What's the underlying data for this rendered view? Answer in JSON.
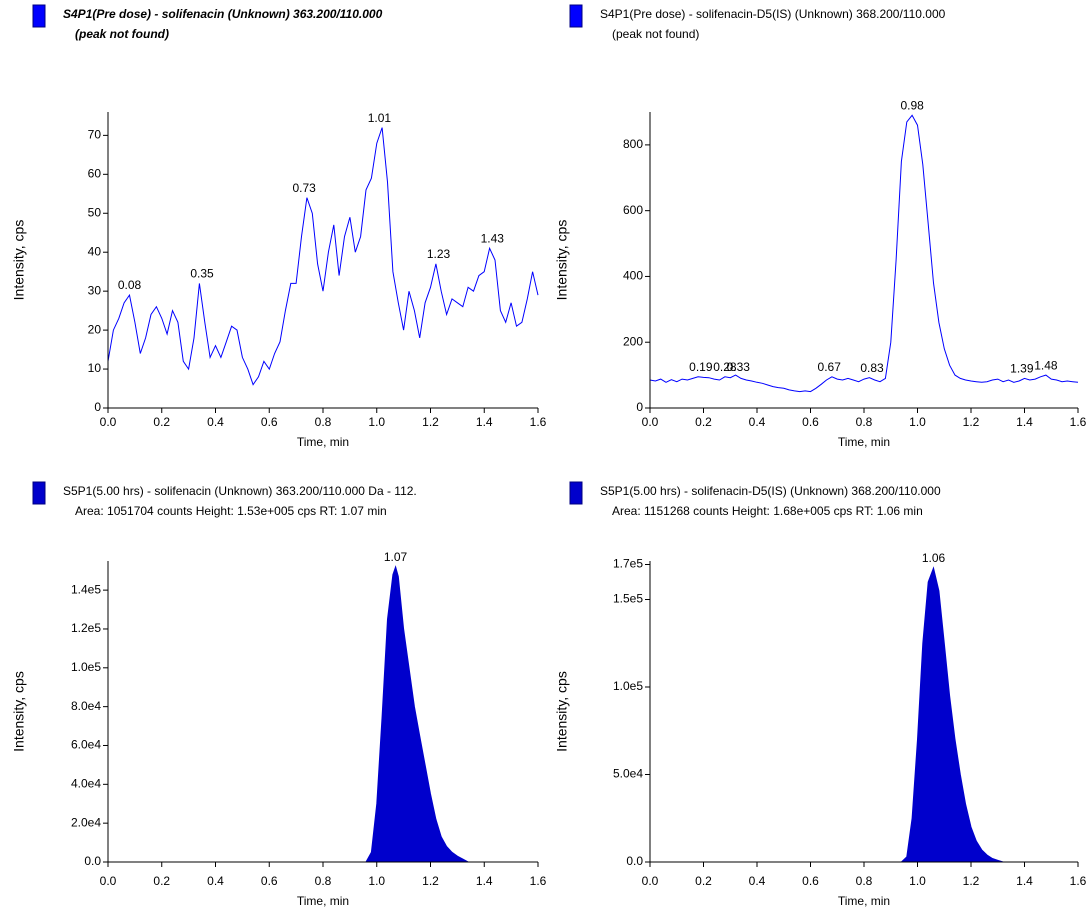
{
  "chart_data": [
    {
      "type": "line",
      "title": "S4P1(Pre dose) - solifenacin (Unknown) 363.200/110.000",
      "subtitle": "(peak not found)",
      "x_label": "Time, min",
      "y_label": "Intensity, cps",
      "color": "#0000ff",
      "x": [
        0,
        0.02,
        0.04,
        0.06,
        0.08,
        0.1,
        0.12,
        0.14,
        0.16,
        0.18,
        0.2,
        0.22,
        0.24,
        0.26,
        0.28,
        0.3,
        0.32,
        0.34,
        0.36,
        0.38,
        0.4,
        0.42,
        0.44,
        0.46,
        0.48,
        0.5,
        0.52,
        0.54,
        0.56,
        0.58,
        0.6,
        0.62,
        0.64,
        0.66,
        0.68,
        0.7,
        0.72,
        0.74,
        0.76,
        0.78,
        0.8,
        0.82,
        0.84,
        0.86,
        0.88,
        0.9,
        0.92,
        0.94,
        0.96,
        0.98,
        1,
        1.02,
        1.04,
        1.06,
        1.08,
        1.1,
        1.12,
        1.14,
        1.16,
        1.18,
        1.2,
        1.22,
        1.24,
        1.26,
        1.28,
        1.3,
        1.32,
        1.34,
        1.36,
        1.38,
        1.4,
        1.42,
        1.44,
        1.46,
        1.48,
        1.5,
        1.52,
        1.54,
        1.56,
        1.58,
        1.6
      ],
      "values": [
        12,
        20,
        23,
        27,
        29,
        22,
        14,
        18,
        24,
        26,
        23,
        19,
        25,
        22,
        12,
        10,
        18,
        32,
        22,
        13,
        16,
        13,
        17,
        21,
        20,
        13,
        10,
        6,
        8,
        12,
        10,
        14,
        17,
        25,
        32,
        32,
        44,
        54,
        50,
        37,
        30,
        40,
        47,
        34,
        44,
        49,
        40,
        44,
        56,
        59,
        68,
        72,
        58,
        35,
        27,
        20,
        30,
        25,
        18,
        27,
        31,
        37,
        30,
        24,
        28,
        27,
        26,
        31,
        30,
        34,
        35,
        41,
        38,
        25,
        22,
        27,
        21,
        22,
        28,
        35,
        29
      ],
      "annotations": [
        {
          "x": 0.08,
          "y": 29
        },
        {
          "x": 0.35,
          "y": 32
        },
        {
          "x": 0.73,
          "y": 54
        },
        {
          "x": 1.01,
          "y": 72
        },
        {
          "x": 1.23,
          "y": 37
        },
        {
          "x": 1.43,
          "y": 41
        }
      ],
      "xlim": [
        0,
        1.6
      ],
      "xticks": [
        {
          "value": 0,
          "label": "0.0"
        },
        0.2,
        0.4,
        0.6,
        0.8,
        {
          "value": 1,
          "label": "1.0"
        },
        1.2,
        1.4,
        1.6
      ],
      "ylim": [
        0,
        76
      ],
      "yticks": [
        0,
        10,
        20,
        30,
        40,
        50,
        60,
        70
      ]
    },
    {
      "type": "line",
      "title": "S4P1(Pre dose) - solifenacin-D5(IS) (Unknown) 368.200/110.000",
      "subtitle": "(peak not found)",
      "x_label": "Time, min",
      "y_label": "Intensity, cps",
      "color": "#0000ff",
      "x": [
        0,
        0.02,
        0.04,
        0.06,
        0.08,
        0.1,
        0.12,
        0.14,
        0.16,
        0.18,
        0.2,
        0.22,
        0.24,
        0.26,
        0.28,
        0.3,
        0.32,
        0.34,
        0.36,
        0.38,
        0.4,
        0.42,
        0.44,
        0.46,
        0.48,
        0.5,
        0.52,
        0.54,
        0.56,
        0.58,
        0.6,
        0.62,
        0.64,
        0.66,
        0.68,
        0.7,
        0.72,
        0.74,
        0.76,
        0.78,
        0.8,
        0.82,
        0.84,
        0.86,
        0.88,
        0.9,
        0.92,
        0.94,
        0.96,
        0.98,
        1,
        1.02,
        1.04,
        1.06,
        1.08,
        1.1,
        1.12,
        1.14,
        1.16,
        1.18,
        1.2,
        1.22,
        1.24,
        1.26,
        1.28,
        1.3,
        1.32,
        1.34,
        1.36,
        1.38,
        1.4,
        1.42,
        1.44,
        1.46,
        1.48,
        1.5,
        1.52,
        1.54,
        1.56,
        1.58,
        1.6
      ],
      "values": [
        85,
        82,
        88,
        78,
        86,
        80,
        88,
        85,
        90,
        95,
        93,
        92,
        88,
        85,
        95,
        92,
        100,
        90,
        85,
        82,
        78,
        75,
        70,
        65,
        62,
        60,
        55,
        52,
        50,
        52,
        50,
        60,
        72,
        85,
        95,
        88,
        85,
        90,
        85,
        80,
        88,
        92,
        85,
        80,
        90,
        200,
        450,
        750,
        870,
        890,
        860,
        740,
        560,
        380,
        260,
        180,
        130,
        100,
        90,
        85,
        82,
        80,
        78,
        80,
        85,
        88,
        80,
        85,
        78,
        82,
        90,
        85,
        88,
        95,
        100,
        88,
        85,
        80,
        82,
        80,
        78
      ],
      "annotations": [
        {
          "x": 0.19,
          "y": 95
        },
        {
          "x": 0.28,
          "y": 95
        },
        {
          "x": 0.33,
          "y": 95
        },
        {
          "x": 0.67,
          "y": 95
        },
        {
          "x": 0.83,
          "y": 92
        },
        {
          "x": 0.98,
          "y": 890
        },
        {
          "x": 1.39,
          "y": 90
        },
        {
          "x": 1.48,
          "y": 100
        }
      ],
      "xlim": [
        0,
        1.6
      ],
      "xticks": [
        {
          "value": 0,
          "label": "0.0"
        },
        0.2,
        0.4,
        0.6,
        0.8,
        {
          "value": 1,
          "label": "1.0"
        },
        1.2,
        1.4,
        1.6
      ],
      "ylim": [
        0,
        900
      ],
      "yticks": [
        0,
        200,
        400,
        600,
        800
      ]
    },
    {
      "type": "area",
      "title": "S5P1(5.00 hrs) - solifenacin (Unknown) 363.200/110.000 Da - 112.",
      "subtitle": "Area: 1051704 counts  Height: 1.53e+005 cps  RT: 1.07 min",
      "x_label": "Time, min",
      "y_label": "Intensity, cps",
      "color": "#0000cc",
      "x": [
        0,
        0.96,
        0.98,
        1,
        1.02,
        1.04,
        1.06,
        1.07,
        1.08,
        1.1,
        1.12,
        1.14,
        1.16,
        1.18,
        1.2,
        1.22,
        1.24,
        1.26,
        1.28,
        1.3,
        1.32,
        1.34,
        1.6
      ],
      "values": [
        0,
        0,
        5000,
        30000,
        75000,
        125000,
        148000,
        152000,
        147000,
        120000,
        100000,
        80000,
        65000,
        50000,
        35000,
        22000,
        13000,
        8000,
        5000,
        3000,
        1500,
        0,
        0
      ],
      "annotations": [
        {
          "x": 1.07,
          "y": 152000
        }
      ],
      "xlim": [
        0,
        1.6
      ],
      "xticks": [
        {
          "value": 0,
          "label": "0.0"
        },
        0.2,
        0.4,
        0.6,
        0.8,
        {
          "value": 1,
          "label": "1.0"
        },
        1.2,
        1.4,
        1.6
      ],
      "ylim": [
        0,
        155000
      ],
      "yticks": [
        {
          "value": 0,
          "label": "0.0"
        },
        {
          "value": 20000,
          "label": "2.0e4"
        },
        {
          "value": 40000,
          "label": "4.0e4"
        },
        {
          "value": 60000,
          "label": "6.0e4"
        },
        {
          "value": 80000,
          "label": "8.0e4"
        },
        {
          "value": 100000,
          "label": "1.0e5"
        },
        {
          "value": 120000,
          "label": "1.2e5"
        },
        {
          "value": 140000,
          "label": "1.4e5"
        }
      ]
    },
    {
      "type": "area",
      "title": "S5P1(5.00 hrs) - solifenacin-D5(IS) (Unknown) 368.200/110.000",
      "subtitle": "Area: 1151268 counts  Height: 1.68e+005 cps  RT: 1.06 min",
      "x_label": "Time, min",
      "y_label": "Intensity, cps",
      "color": "#0000cc",
      "x": [
        0,
        0.94,
        0.96,
        0.98,
        1,
        1.02,
        1.04,
        1.06,
        1.08,
        1.1,
        1.12,
        1.14,
        1.16,
        1.18,
        1.2,
        1.22,
        1.24,
        1.26,
        1.28,
        1.3,
        1.32,
        1.6
      ],
      "values": [
        0,
        0,
        3000,
        25000,
        70000,
        125000,
        160000,
        168000,
        155000,
        125000,
        95000,
        70000,
        50000,
        33000,
        20000,
        12000,
        7000,
        4000,
        2000,
        1000,
        0,
        0
      ],
      "annotations": [
        {
          "x": 1.06,
          "y": 168000
        }
      ],
      "xlim": [
        0,
        1.6
      ],
      "xticks": [
        {
          "value": 0,
          "label": "0.0"
        },
        0.2,
        0.4,
        0.6,
        0.8,
        {
          "value": 1,
          "label": "1.0"
        },
        1.2,
        1.4,
        1.6
      ],
      "ylim": [
        0,
        172000
      ],
      "yticks": [
        {
          "value": 0,
          "label": "0.0"
        },
        {
          "value": 50000,
          "label": "5.0e4"
        },
        {
          "value": 100000,
          "label": "1.0e5"
        },
        {
          "value": 150000,
          "label": "1.5e5"
        },
        {
          "value": 170000,
          "label": "1.7e5"
        }
      ]
    }
  ]
}
